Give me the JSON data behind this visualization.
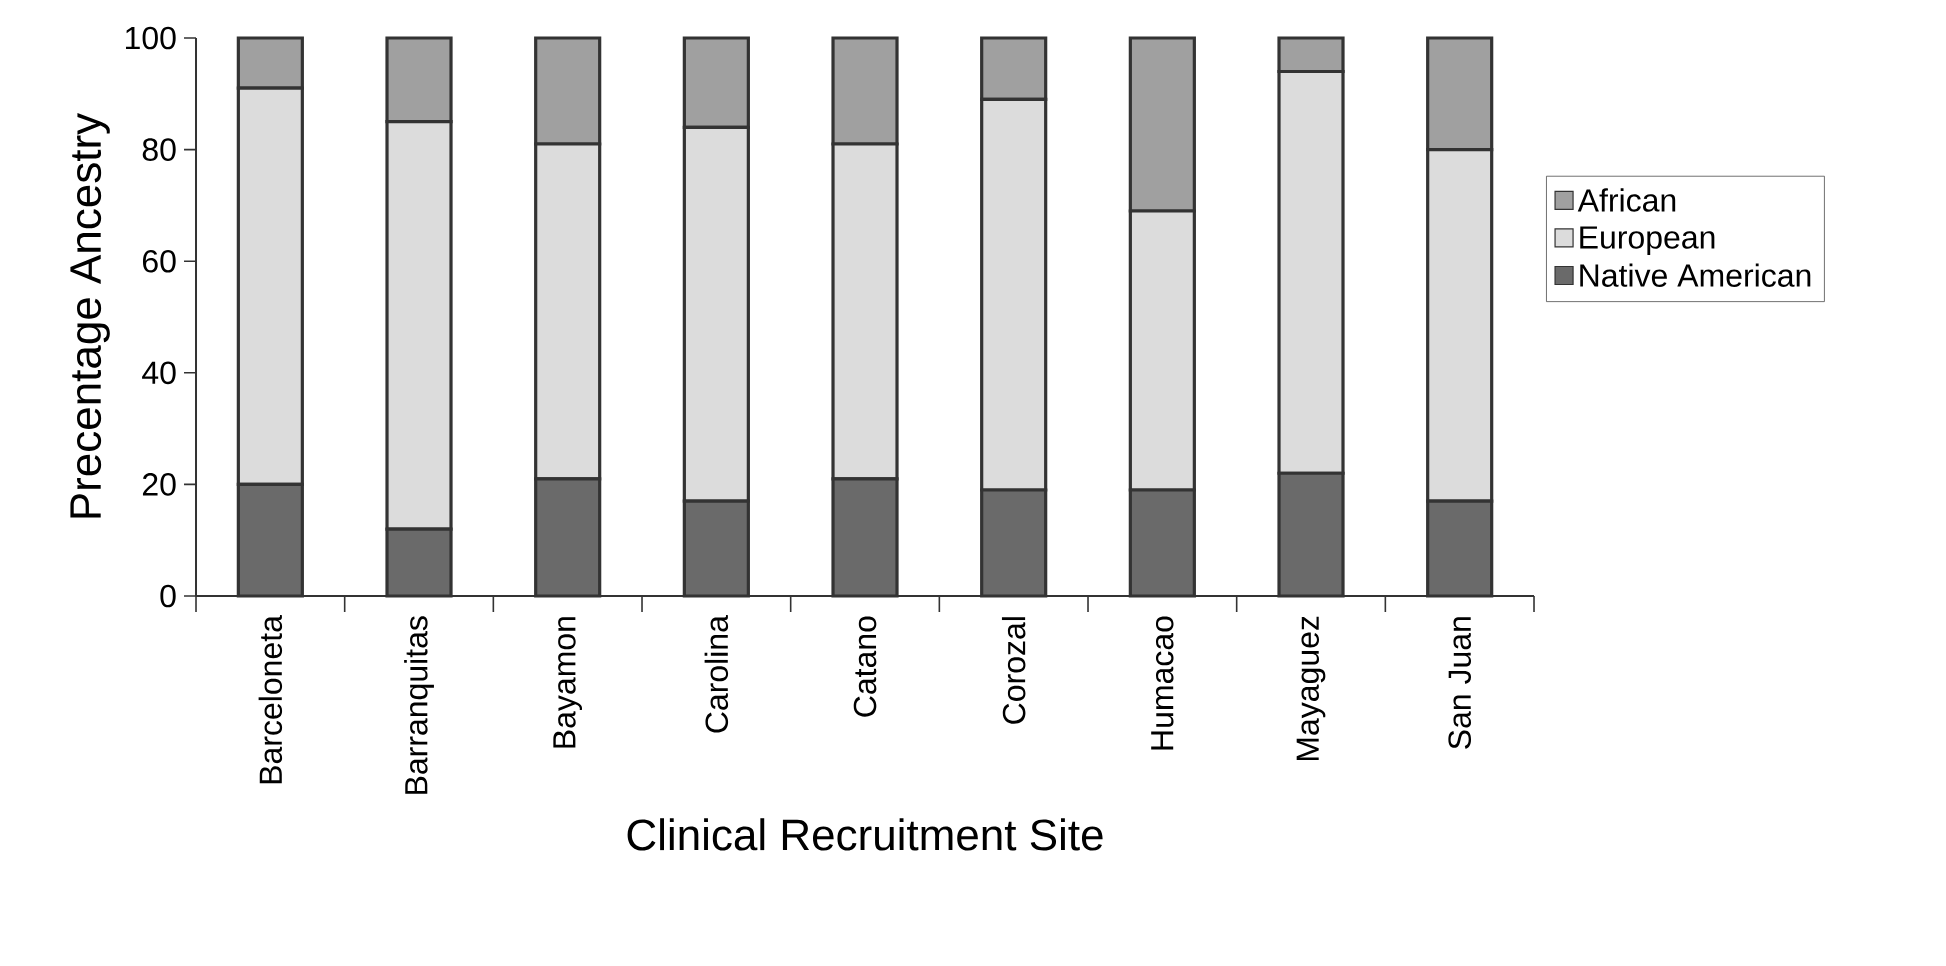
{
  "chart_data": {
    "type": "bar",
    "stacked": true,
    "legend": "right",
    "xlabel": "Clinical Recruitment Site",
    "ylabel": "Precentage Ancestry",
    "categories": [
      "Barceloneta",
      "Barranquitas",
      "Bayamon",
      "Carolina",
      "Catano",
      "Corozal",
      "Humacao",
      "Mayaguez",
      "San Juan"
    ],
    "series": [
      {
        "name": "Native American",
        "color": "#6a6a6a",
        "values": [
          20,
          12,
          21,
          17,
          21,
          19,
          19,
          22,
          17
        ]
      },
      {
        "name": "European",
        "color": "#dcdcdc",
        "values": [
          71,
          73,
          60,
          67,
          60,
          70,
          50,
          72,
          63
        ]
      },
      {
        "name": "African",
        "color": "#a0a0a0",
        "values": [
          9,
          15,
          19,
          16,
          19,
          11,
          31,
          6,
          20
        ]
      }
    ],
    "ylim": [
      0,
      100
    ],
    "yticks": [
      0,
      20,
      40,
      60,
      80,
      100
    ]
  }
}
